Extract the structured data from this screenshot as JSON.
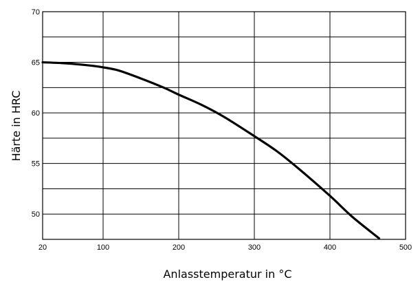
{
  "chart_data": {
    "type": "line",
    "title": "",
    "xlabel": "Anlasstemperatur in °C",
    "ylabel": "Härte in HRC",
    "xlim": [
      20,
      500
    ],
    "ylim": [
      47.5,
      70
    ],
    "x_ticks": [
      20,
      100,
      200,
      300,
      400,
      500
    ],
    "y_ticks": [
      50,
      55,
      60,
      65,
      70
    ],
    "grid": true,
    "series": [
      {
        "x": [
          20,
          50,
          80,
          100,
          120,
          150,
          180,
          200,
          230,
          260,
          300,
          330,
          360,
          400,
          430,
          465
        ],
        "y": [
          65.0,
          64.9,
          64.7,
          64.5,
          64.2,
          63.4,
          62.5,
          61.8,
          60.8,
          59.6,
          57.7,
          56.2,
          54.4,
          51.8,
          49.7,
          47.6
        ]
      }
    ]
  }
}
